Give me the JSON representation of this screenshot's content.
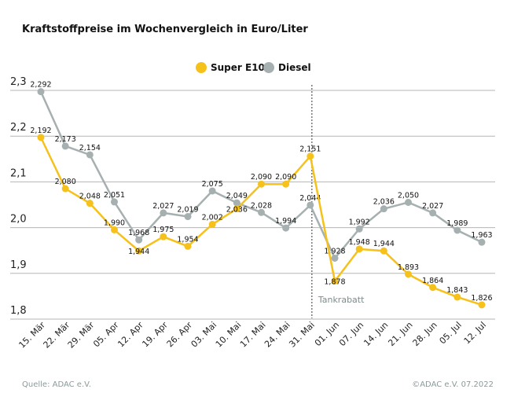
{
  "chart_data": {
    "type": "line",
    "title": "Kraftstoffpreise im Wochenvergleich in Euro/Liter",
    "categories": [
      "15. Mär",
      "22. Mär",
      "29. Mär",
      "05. Apr",
      "12. Apr",
      "19. Apr",
      "26. Apr",
      "03. Mai",
      "10. Mai",
      "17. Mai",
      "24. Mai",
      "31. Mai",
      "01. Jun",
      "07. Jun",
      "14. Jun",
      "21. Jun",
      "28. Jun",
      "05. Jul",
      "12. Jul"
    ],
    "series": [
      {
        "name": "Super E10",
        "color": "#f5c11a",
        "values": [
          2.192,
          2.08,
          2.048,
          1.99,
          1.944,
          1.975,
          1.954,
          2.002,
          2.036,
          2.09,
          2.09,
          2.151,
          1.878,
          1.948,
          1.944,
          1.893,
          1.864,
          1.843,
          1.826
        ]
      },
      {
        "name": "Diesel",
        "color": "#a6b0b0",
        "values": [
          2.292,
          2.173,
          2.154,
          2.051,
          1.968,
          2.027,
          2.019,
          2.075,
          2.049,
          2.028,
          1.994,
          2.044,
          1.928,
          1.992,
          2.036,
          2.05,
          2.027,
          1.989,
          1.963
        ]
      }
    ],
    "yticks": [
      "2,3",
      "2,2",
      "2,1",
      "2,0",
      "1,9",
      "1,8"
    ],
    "ylim": [
      1.8,
      2.3
    ],
    "grid": true,
    "legend": "top-center",
    "annotation": {
      "label": "Tankrabatt",
      "category": "31. Mai"
    },
    "decimal_separator": ","
  },
  "footer": {
    "source": "Quelle: ADAC e.V.",
    "copyright": "©ADAC e.V.  07.2022"
  }
}
